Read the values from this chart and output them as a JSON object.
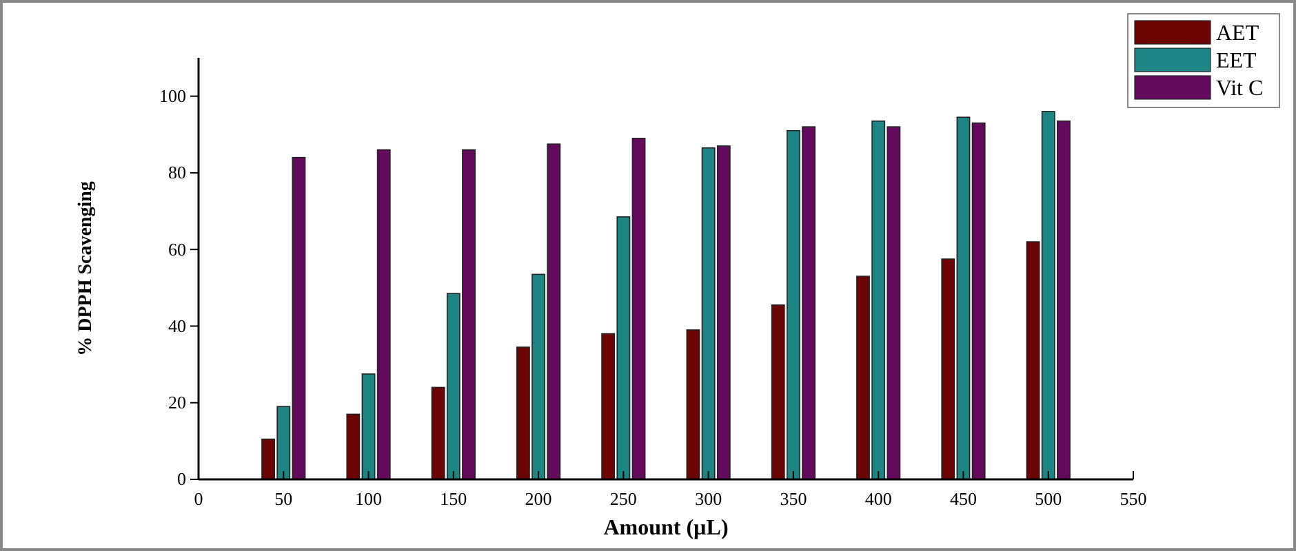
{
  "chart_data": {
    "type": "bar",
    "xlabel": "Amount (µL)",
    "ylabel": "% DPPH Scavenging",
    "x": [
      50,
      100,
      150,
      200,
      250,
      300,
      350,
      400,
      450,
      500
    ],
    "series": [
      {
        "name": "AET",
        "color": "#6e0505",
        "values": [
          10.5,
          17,
          24,
          34.5,
          38,
          39,
          45.5,
          53,
          57.5,
          62
        ]
      },
      {
        "name": "EET",
        "color": "#1e8585",
        "values": [
          19,
          27.5,
          48.5,
          53.5,
          68.5,
          86.5,
          91,
          93.5,
          94.5,
          96
        ]
      },
      {
        "name": "Vit C",
        "color": "#640a5c",
        "values": [
          84,
          86,
          86,
          87.5,
          89,
          87,
          92,
          92,
          93,
          93.5
        ]
      }
    ],
    "xlim": [
      0,
      550
    ],
    "xticks": [
      0,
      50,
      100,
      150,
      200,
      250,
      300,
      350,
      400,
      450,
      500,
      550
    ],
    "ylim": [
      0,
      110
    ],
    "yticks": [
      0,
      20,
      40,
      60,
      80,
      100
    ],
    "grid": false,
    "legend": "top right"
  }
}
